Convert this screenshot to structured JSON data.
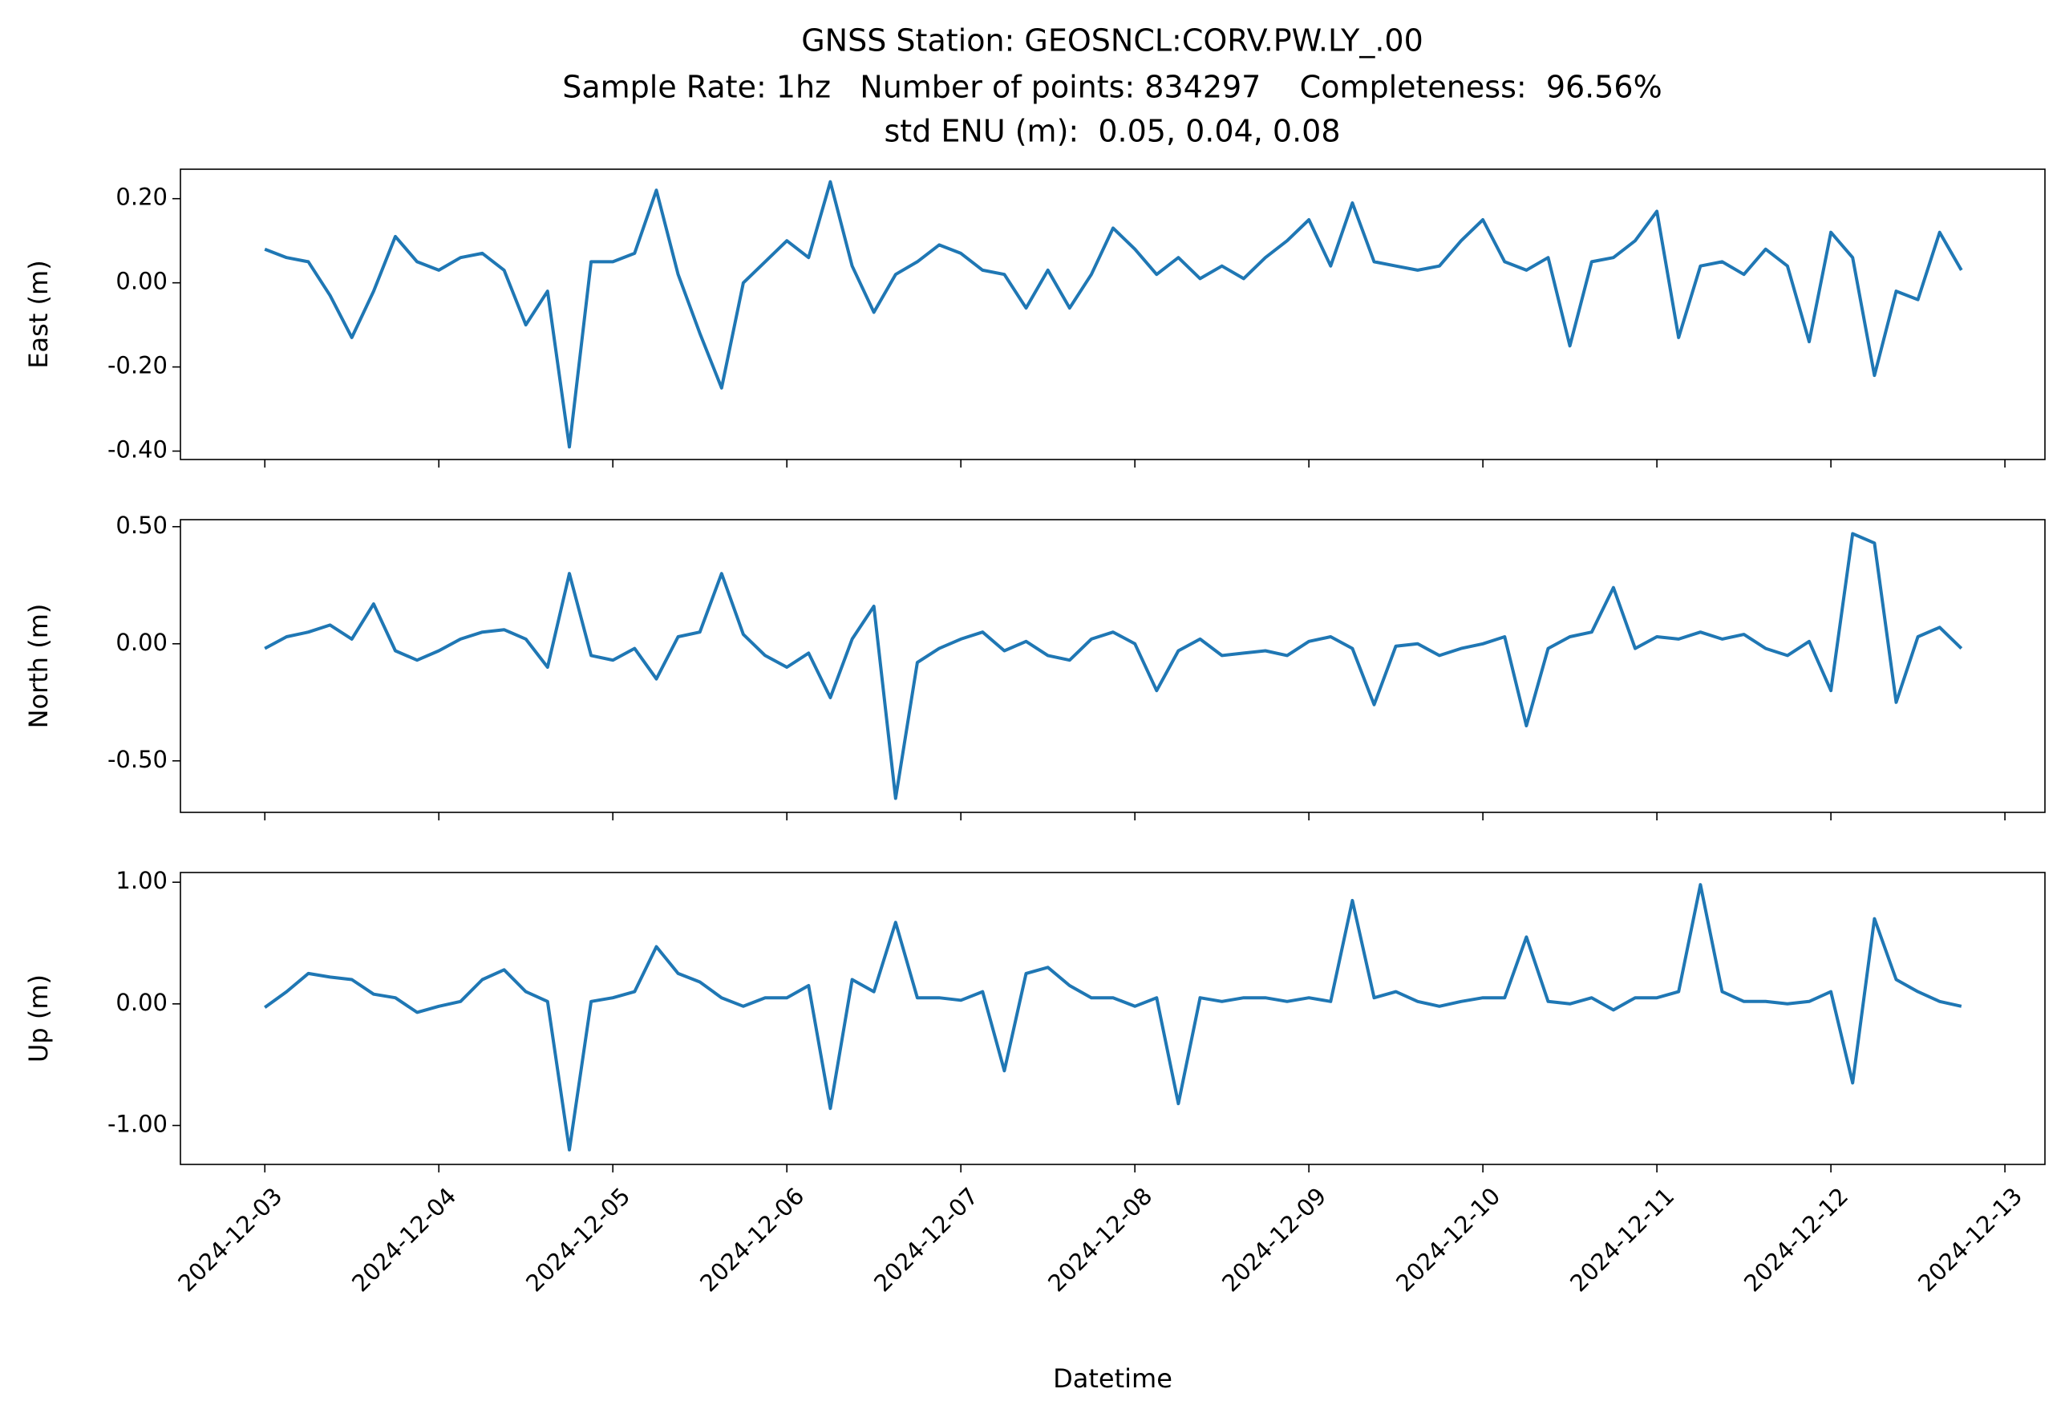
{
  "chart_data": [
    {
      "type": "line",
      "title": [
        "GNSS Station: GEOSNCL:CORV.PW.LY_.00",
        "Sample Rate: 1hz   Number of points: 834297    Completeness:  96.56%",
        "std ENU (m):  0.05, 0.04, 0.08"
      ],
      "ylabel": "East (m)",
      "color": "#1f77b4",
      "x": [
        0,
        0.125,
        0.25,
        0.375,
        0.5,
        0.625,
        0.75,
        0.875,
        1,
        1.125,
        1.25,
        1.375,
        1.5,
        1.625,
        1.75,
        1.875,
        2,
        2.125,
        2.25,
        2.375,
        2.5,
        2.625,
        2.75,
        2.875,
        3,
        3.125,
        3.25,
        3.375,
        3.5,
        3.625,
        3.75,
        3.875,
        4,
        4.125,
        4.25,
        4.375,
        4.5,
        4.625,
        4.75,
        4.875,
        5,
        5.125,
        5.25,
        5.375,
        5.5,
        5.625,
        5.75,
        5.875,
        6,
        6.125,
        6.25,
        6.375,
        6.5,
        6.625,
        6.75,
        6.875,
        7,
        7.125,
        7.25,
        7.375,
        7.5,
        7.625,
        7.75,
        7.875,
        8,
        8.125,
        8.25,
        8.375,
        8.5,
        8.625,
        8.75,
        8.875,
        9,
        9.125,
        9.25,
        9.375,
        9.5,
        9.625,
        9.75
      ],
      "values": [
        0.08,
        0.06,
        0.05,
        -0.03,
        -0.13,
        -0.02,
        0.11,
        0.05,
        0.03,
        0.06,
        0.07,
        0.03,
        -0.1,
        -0.02,
        -0.39,
        0.05,
        0.05,
        0.07,
        0.22,
        0.02,
        -0.12,
        -0.25,
        0.0,
        0.05,
        0.1,
        0.06,
        0.24,
        0.04,
        -0.07,
        0.02,
        0.05,
        0.09,
        0.07,
        0.03,
        0.02,
        -0.06,
        0.03,
        -0.06,
        0.02,
        0.13,
        0.08,
        0.02,
        0.06,
        0.01,
        0.04,
        0.01,
        0.06,
        0.1,
        0.15,
        0.04,
        0.19,
        0.05,
        0.04,
        0.03,
        0.04,
        0.1,
        0.15,
        0.05,
        0.03,
        0.06,
        -0.15,
        0.05,
        0.06,
        0.1,
        0.17,
        -0.13,
        0.04,
        0.05,
        0.02,
        0.08,
        0.04,
        -0.14,
        0.12,
        0.06,
        -0.22,
        -0.02,
        -0.04,
        0.12,
        0.03
      ],
      "xlim": [
        -0.485,
        10.23
      ],
      "ylim": [
        -0.42,
        0.27
      ],
      "yticks": [
        {
          "value": 0.2,
          "label": "0.20"
        },
        {
          "value": 0,
          "label": "0.00"
        },
        {
          "value": -0.2,
          "label": "-0.20"
        },
        {
          "value": -0.4,
          "label": "-0.40"
        }
      ]
    },
    {
      "type": "line",
      "ylabel": "North (m)",
      "color": "#1f77b4",
      "x": [
        0,
        0.125,
        0.25,
        0.375,
        0.5,
        0.625,
        0.75,
        0.875,
        1,
        1.125,
        1.25,
        1.375,
        1.5,
        1.625,
        1.75,
        1.875,
        2,
        2.125,
        2.25,
        2.375,
        2.5,
        2.625,
        2.75,
        2.875,
        3,
        3.125,
        3.25,
        3.375,
        3.5,
        3.625,
        3.75,
        3.875,
        4,
        4.125,
        4.25,
        4.375,
        4.5,
        4.625,
        4.75,
        4.875,
        5,
        5.125,
        5.25,
        5.375,
        5.5,
        5.625,
        5.75,
        5.875,
        6,
        6.125,
        6.25,
        6.375,
        6.5,
        6.625,
        6.75,
        6.875,
        7,
        7.125,
        7.25,
        7.375,
        7.5,
        7.625,
        7.75,
        7.875,
        8,
        8.125,
        8.25,
        8.375,
        8.5,
        8.625,
        8.75,
        8.875,
        9,
        9.125,
        9.25,
        9.375,
        9.5,
        9.625,
        9.75
      ],
      "values": [
        -0.02,
        0.03,
        0.05,
        0.08,
        0.02,
        0.17,
        -0.03,
        -0.07,
        -0.03,
        0.02,
        0.05,
        0.06,
        0.02,
        -0.1,
        0.3,
        -0.05,
        -0.07,
        -0.02,
        -0.15,
        0.03,
        0.05,
        0.3,
        0.04,
        -0.05,
        -0.1,
        -0.04,
        -0.23,
        0.02,
        0.16,
        -0.66,
        -0.08,
        -0.02,
        0.02,
        0.05,
        -0.03,
        0.01,
        -0.05,
        -0.07,
        0.02,
        0.05,
        0.0,
        -0.2,
        -0.03,
        0.02,
        -0.05,
        -0.04,
        -0.03,
        -0.05,
        0.01,
        0.03,
        -0.02,
        -0.26,
        -0.01,
        0.0,
        -0.05,
        -0.02,
        0.0,
        0.03,
        -0.35,
        -0.02,
        0.03,
        0.05,
        0.24,
        -0.02,
        0.03,
        0.02,
        0.05,
        0.02,
        0.04,
        -0.02,
        -0.05,
        0.01,
        -0.2,
        0.47,
        0.43,
        -0.25,
        0.03,
        0.07,
        -0.02
      ],
      "xlim": [
        -0.485,
        10.23
      ],
      "ylim": [
        -0.72,
        0.53
      ],
      "yticks": [
        {
          "value": 0.5,
          "label": "0.50"
        },
        {
          "value": 0,
          "label": "0.00"
        },
        {
          "value": -0.5,
          "label": "-0.50"
        }
      ]
    },
    {
      "type": "line",
      "ylabel": "Up (m)",
      "xlabel": "Datetime",
      "color": "#1f77b4",
      "x": [
        0,
        0.125,
        0.25,
        0.375,
        0.5,
        0.625,
        0.75,
        0.875,
        1,
        1.125,
        1.25,
        1.375,
        1.5,
        1.625,
        1.75,
        1.875,
        2,
        2.125,
        2.25,
        2.375,
        2.5,
        2.625,
        2.75,
        2.875,
        3,
        3.125,
        3.25,
        3.375,
        3.5,
        3.625,
        3.75,
        3.875,
        4,
        4.125,
        4.25,
        4.375,
        4.5,
        4.625,
        4.75,
        4.875,
        5,
        5.125,
        5.25,
        5.375,
        5.5,
        5.625,
        5.75,
        5.875,
        6,
        6.125,
        6.25,
        6.375,
        6.5,
        6.625,
        6.75,
        6.875,
        7,
        7.125,
        7.25,
        7.375,
        7.5,
        7.625,
        7.75,
        7.875,
        8,
        8.125,
        8.25,
        8.375,
        8.5,
        8.625,
        8.75,
        8.875,
        9,
        9.125,
        9.25,
        9.375,
        9.5,
        9.625,
        9.75
      ],
      "values": [
        -0.03,
        0.1,
        0.25,
        0.22,
        0.2,
        0.08,
        0.05,
        -0.07,
        -0.02,
        0.02,
        0.2,
        0.28,
        0.1,
        0.02,
        -1.2,
        0.02,
        0.05,
        0.1,
        0.47,
        0.25,
        0.18,
        0.05,
        -0.02,
        0.05,
        0.05,
        0.15,
        -0.86,
        0.2,
        0.1,
        0.67,
        0.05,
        0.05,
        0.03,
        0.1,
        -0.55,
        0.25,
        0.3,
        0.15,
        0.05,
        0.05,
        -0.02,
        0.05,
        -0.82,
        0.05,
        0.02,
        0.05,
        0.05,
        0.02,
        0.05,
        0.02,
        0.85,
        0.05,
        0.1,
        0.02,
        -0.02,
        0.02,
        0.05,
        0.05,
        0.55,
        0.02,
        0.0,
        0.05,
        -0.05,
        0.05,
        0.05,
        0.1,
        0.98,
        0.1,
        0.02,
        0.02,
        0.0,
        0.02,
        0.1,
        -0.65,
        0.7,
        0.2,
        0.1,
        0.02,
        -0.02
      ],
      "xlim": [
        -0.485,
        10.23
      ],
      "ylim": [
        -1.32,
        1.08
      ],
      "yticks": [
        {
          "value": 1,
          "label": "1.00"
        },
        {
          "value": 0,
          "label": "0.00"
        },
        {
          "value": -1,
          "label": "-1.00"
        }
      ],
      "xticks": [
        {
          "value": 0,
          "label": "2024-12-03"
        },
        {
          "value": 1,
          "label": "2024-12-04"
        },
        {
          "value": 2,
          "label": "2024-12-05"
        },
        {
          "value": 3,
          "label": "2024-12-06"
        },
        {
          "value": 4,
          "label": "2024-12-07"
        },
        {
          "value": 5,
          "label": "2024-12-08"
        },
        {
          "value": 6,
          "label": "2024-12-09"
        },
        {
          "value": 7,
          "label": "2024-12-10"
        },
        {
          "value": 8,
          "label": "2024-12-11"
        },
        {
          "value": 9,
          "label": "2024-12-12"
        },
        {
          "value": 10,
          "label": "2024-12-13"
        }
      ]
    }
  ]
}
